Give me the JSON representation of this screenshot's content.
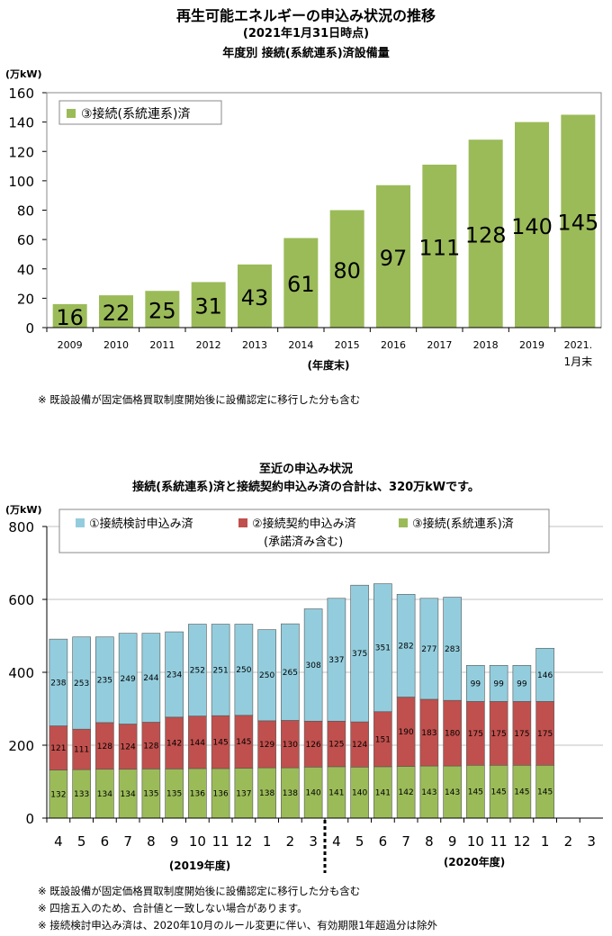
{
  "header": {
    "title": "再生可能エネルギーの申込み状況の推移",
    "as_of": "(2021年1月31日時点)",
    "subtitle1": "年度別  接続(系統連系)済設備量"
  },
  "note_top": "※ 既設設備が固定価格買取制度開始後に設備認定に移行した分も含む",
  "section2": {
    "title": "至近の申込み状況",
    "subtitle": "接続(系統連系)済と接続契約申込み済の合計は、320万kWです。"
  },
  "notes_bottom": [
    "※ 既設設備が固定価格買取制度開始後に設備認定に移行した分も含む",
    "※ 四捨五入のため、合計値と一致しない場合があります。",
    "※ 接続検討申込み済は、2020年10月のルール変更に伴い、有効期限1年超過分は除外"
  ],
  "colors": {
    "green": "#9bbb59",
    "red": "#c0504d",
    "blue": "#93cddd",
    "grid": "#c0c0c0"
  },
  "chart_data": [
    {
      "type": "bar",
      "unit": "(万kW)",
      "categories": [
        "2009",
        "2010",
        "2011",
        "2012",
        "2013",
        "2014",
        "2015",
        "2016",
        "2017",
        "2018",
        "2019",
        "2021."
      ],
      "category_line2": [
        "",
        "",
        "",
        "",
        "",
        "",
        "",
        "",
        "",
        "",
        "",
        "1月末"
      ],
      "series": [
        {
          "name": "③接続(系統連系)済",
          "values": [
            16,
            22,
            25,
            31,
            43,
            61,
            80,
            97,
            111,
            128,
            140,
            145
          ]
        }
      ],
      "xlabel": "(年度末)",
      "ylim": [
        0,
        160
      ],
      "yticks": [
        "0",
        "20",
        "40",
        "60",
        "80",
        "100",
        "120",
        "140",
        "160"
      ],
      "legend": "top-left",
      "grid": false
    },
    {
      "type": "bar",
      "stacked": true,
      "unit": "(万kW)",
      "categories": [
        "4",
        "5",
        "6",
        "7",
        "8",
        "9",
        "10",
        "11",
        "12",
        "1",
        "2",
        "3",
        "4",
        "5",
        "6",
        "7",
        "8",
        "9",
        "10",
        "11",
        "12",
        "1",
        "2",
        "3"
      ],
      "series": [
        {
          "name": "③接続(系統連系)済",
          "values": [
            132,
            133,
            134,
            134,
            135,
            135,
            136,
            136,
            137,
            138,
            138,
            140,
            141,
            140,
            141,
            142,
            143,
            143,
            145,
            145,
            145,
            145,
            null,
            null
          ]
        },
        {
          "name": "②接続契約申込み済",
          "name_line2": "(承諾済み含む)",
          "values": [
            121,
            111,
            128,
            124,
            128,
            142,
            144,
            145,
            145,
            129,
            130,
            126,
            125,
            124,
            151,
            190,
            183,
            180,
            175,
            175,
            175,
            175,
            null,
            null
          ]
        },
        {
          "name": "①接続検討申込み済",
          "values": [
            238,
            253,
            235,
            249,
            244,
            234,
            252,
            251,
            250,
            250,
            265,
            308,
            337,
            375,
            351,
            282,
            277,
            283,
            99,
            99,
            99,
            146,
            null,
            null
          ]
        }
      ],
      "fiscal_year_labels": [
        "(2019年度)",
        "(2020年度)"
      ],
      "ylim": [
        0,
        800
      ],
      "yticks": [
        "0",
        "200",
        "400",
        "600",
        "800"
      ],
      "legend": "top",
      "grid": true
    }
  ]
}
